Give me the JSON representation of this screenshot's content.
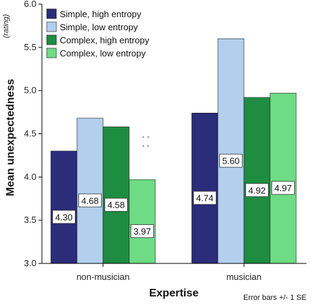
{
  "chart_data": {
    "type": "bar",
    "categories": [
      "non-musician",
      "musician"
    ],
    "series": [
      {
        "name": "Simple, high entropy",
        "values": [
          4.3,
          4.74
        ],
        "labels": [
          "4.30",
          "4.74"
        ],
        "color": "#2b2c7a"
      },
      {
        "name": "Simple, low entropy",
        "values": [
          4.68,
          5.6
        ],
        "labels": [
          "4.68",
          "5.60"
        ],
        "color": "#b2cfee"
      },
      {
        "name": "Complex, high entropy",
        "values": [
          4.58,
          4.92
        ],
        "labels": [
          "4.58",
          "4.92"
        ],
        "color": "#1e8c41"
      },
      {
        "name": "Complex, low entropy",
        "values": [
          3.97,
          4.97
        ],
        "labels": [
          "3.97",
          "4.97"
        ],
        "color": "#6ddc84"
      }
    ],
    "xlabel": "Expertise",
    "ylabel": "Mean unexpectedness",
    "yunit": "(rating)",
    "ylim": [
      3.0,
      6.0
    ],
    "yticks": [
      "3.0",
      "3.5",
      "4.0",
      "4.5",
      "5.0",
      "5.5",
      "6.0"
    ],
    "legend_position": "top-left",
    "grid": false,
    "annotation": ". :\n. :",
    "footnote": "Error bars +/- 1 SE"
  }
}
